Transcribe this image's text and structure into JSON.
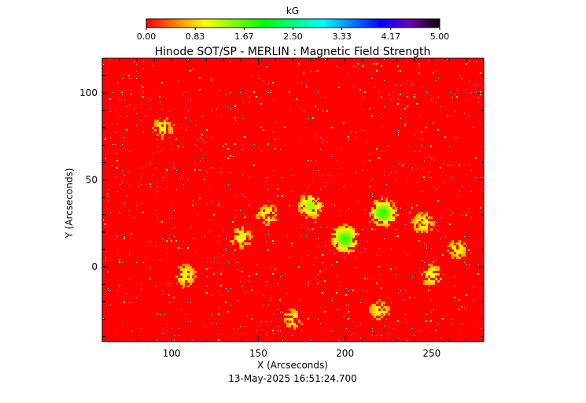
{
  "chart_data": {
    "type": "heatmap",
    "title": "Hinode SOT/SP - MERLIN : Magnetic Field Strength",
    "xlabel": "X (Arcseconds)",
    "ylabel": "Y (Arcseconds)",
    "footer": "13-May-2025 16:51:24.700",
    "xlim": [
      60,
      280
    ],
    "ylim": [
      -43,
      120
    ],
    "x_ticks": [
      100,
      150,
      200,
      250
    ],
    "y_ticks": [
      0,
      50,
      100
    ],
    "colorbar": {
      "title": "kG",
      "range": [
        0,
        5
      ],
      "tick_labels": [
        "0.00",
        "0.83",
        "1.67",
        "2.50",
        "3.33",
        "4.17",
        "5.00"
      ],
      "stops": [
        {
          "v": 0.0,
          "color": "#ff0000"
        },
        {
          "v": 1.0,
          "color": "#ffff00"
        },
        {
          "v": 2.0,
          "color": "#00ff00"
        },
        {
          "v": 3.0,
          "color": "#00ffff"
        },
        {
          "v": 4.0,
          "color": "#0000ff"
        },
        {
          "v": 4.5,
          "color": "#7000b0"
        },
        {
          "v": 5.0,
          "color": "#000000"
        }
      ]
    },
    "field": {
      "background_kG": 0.1,
      "noise_color": "#ffffff",
      "strong_regions": [
        {
          "x": 180,
          "y": 35,
          "kG": 1.4
        },
        {
          "x": 222,
          "y": 31,
          "kG": 1.8
        },
        {
          "x": 200,
          "y": 16,
          "kG": 1.8
        },
        {
          "x": 155,
          "y": 30,
          "kG": 1.1
        },
        {
          "x": 140,
          "y": 17,
          "kG": 1.1
        },
        {
          "x": 108,
          "y": -5,
          "kG": 1.1
        },
        {
          "x": 245,
          "y": 25,
          "kG": 1.1
        },
        {
          "x": 250,
          "y": -5,
          "kG": 1.1
        },
        {
          "x": 220,
          "y": -25,
          "kG": 1.0
        },
        {
          "x": 95,
          "y": 80,
          "kG": 1.0
        },
        {
          "x": 170,
          "y": -30,
          "kG": 1.0
        },
        {
          "x": 265,
          "y": 10,
          "kG": 1.0
        }
      ]
    }
  }
}
